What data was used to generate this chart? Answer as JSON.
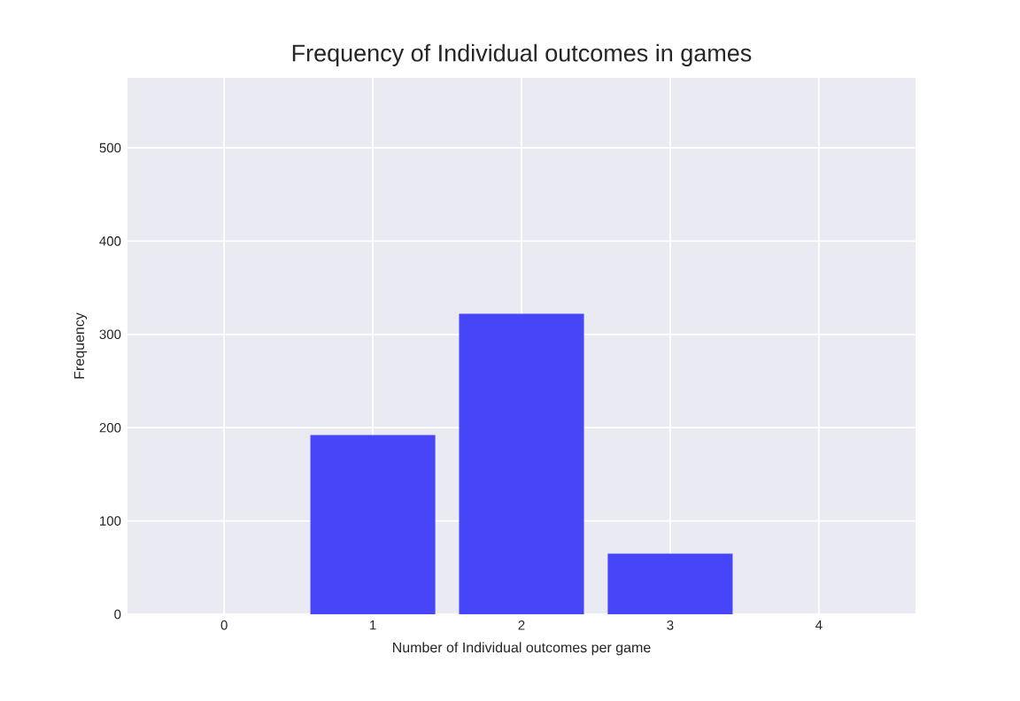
{
  "chart_data": {
    "type": "bar",
    "title": "Frequency of Individual outcomes in games",
    "xlabel": "Number of Individual outcomes per game",
    "ylabel": "Frequency",
    "x": [
      1,
      2,
      3
    ],
    "values": [
      192,
      322,
      65
    ],
    "color": "#4646f8",
    "xlim": [
      -0.65,
      4.65
    ],
    "xticks": [
      0,
      1,
      2,
      3,
      4
    ],
    "ylim": [
      0,
      575
    ],
    "yticks": [
      0,
      100,
      200,
      300,
      400,
      500
    ],
    "grid": true
  }
}
